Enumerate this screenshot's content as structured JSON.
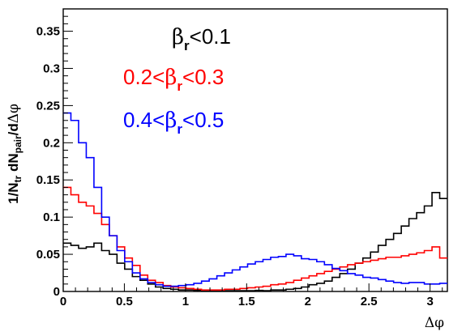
{
  "chart_data": {
    "type": "line",
    "xlabel": "Δφ",
    "ylabel": {
      "prefix": "1/N",
      "sub1": "tr",
      "mid": " dN",
      "sub2": "pair",
      "suffix": "/d",
      "delta": "Δφ"
    },
    "xlim": [
      0,
      3.1416
    ],
    "ylim": [
      0,
      0.38
    ],
    "x_ticks": [
      {
        "v": 0,
        "label": "0"
      },
      {
        "v": 0.5,
        "label": "0.5"
      },
      {
        "v": 1,
        "label": "1"
      },
      {
        "v": 1.5,
        "label": "1.5"
      },
      {
        "v": 2,
        "label": "2"
      },
      {
        "v": 2.5,
        "label": "2.5"
      },
      {
        "v": 3,
        "label": "3"
      }
    ],
    "y_ticks": [
      {
        "v": 0,
        "label": "0"
      },
      {
        "v": 0.05,
        "label": "0.05"
      },
      {
        "v": 0.1,
        "label": "0.1"
      },
      {
        "v": 0.15,
        "label": "0.15"
      },
      {
        "v": 0.2,
        "label": "0.2"
      },
      {
        "v": 0.25,
        "label": "0.25"
      },
      {
        "v": 0.3,
        "label": "0.3"
      },
      {
        "v": 0.35,
        "label": "0.35"
      }
    ],
    "bins": 50,
    "grid": false,
    "legend_position": "top-right",
    "series": [
      {
        "legend": {
          "lo": "",
          "hi": "0.1"
        },
        "color": "#000000",
        "values": [
          0.065,
          0.062,
          0.058,
          0.06,
          0.065,
          0.055,
          0.05,
          0.038,
          0.03,
          0.02,
          0.015,
          0.01,
          0.006,
          0.004,
          0.003,
          0.002,
          0.002,
          0.0015,
          0.001,
          0.001,
          0.001,
          0.001,
          0.001,
          0.001,
          0.001,
          0.0015,
          0.001,
          0.002,
          0.002,
          0.003,
          0.004,
          0.006,
          0.009,
          0.011,
          0.014,
          0.019,
          0.024,
          0.03,
          0.038,
          0.045,
          0.053,
          0.062,
          0.07,
          0.078,
          0.088,
          0.098,
          0.106,
          0.115,
          0.133,
          0.125
        ]
      },
      {
        "legend": {
          "lo": "0.2",
          "hi": "0.3"
        },
        "color": "#ff0000",
        "values": [
          0.14,
          0.13,
          0.12,
          0.115,
          0.105,
          0.09,
          0.075,
          0.06,
          0.045,
          0.035,
          0.022,
          0.015,
          0.012,
          0.008,
          0.006,
          0.005,
          0.004,
          0.003,
          0.002,
          0.002,
          0.002,
          0.003,
          0.003,
          0.004,
          0.005,
          0.006,
          0.007,
          0.009,
          0.01,
          0.012,
          0.015,
          0.018,
          0.021,
          0.024,
          0.027,
          0.03,
          0.033,
          0.036,
          0.038,
          0.04,
          0.042,
          0.044,
          0.046,
          0.046,
          0.048,
          0.05,
          0.052,
          0.055,
          0.06,
          0.045
        ]
      },
      {
        "legend": {
          "lo": "0.4",
          "hi": "0.5"
        },
        "color": "#0000ff",
        "values": [
          0.24,
          0.23,
          0.2,
          0.18,
          0.14,
          0.1,
          0.075,
          0.055,
          0.04,
          0.025,
          0.017,
          0.012,
          0.009,
          0.007,
          0.007,
          0.008,
          0.009,
          0.011,
          0.014,
          0.017,
          0.021,
          0.025,
          0.029,
          0.033,
          0.037,
          0.04,
          0.043,
          0.046,
          0.047,
          0.05,
          0.048,
          0.044,
          0.043,
          0.04,
          0.036,
          0.031,
          0.028,
          0.024,
          0.022,
          0.019,
          0.018,
          0.016,
          0.014,
          0.012,
          0.011,
          0.012,
          0.012,
          0.01,
          0.01,
          0.011
        ]
      }
    ],
    "legend_symbol": "β",
    "legend_sub": "r",
    "legend_lt": "<"
  }
}
